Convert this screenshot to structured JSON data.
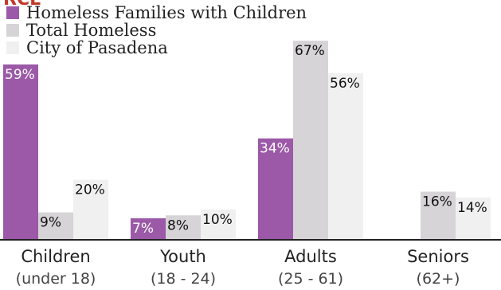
{
  "chart_data": {
    "type": "bar",
    "categories": [
      "Children",
      "Youth",
      "Adults",
      "Seniors"
    ],
    "category_sublabels": [
      "(under 18)",
      "(18 - 24)",
      "(25 - 61)",
      "(62+)"
    ],
    "series": [
      {
        "name": "Homeless Families with Children",
        "values": [
          59,
          7,
          34,
          null
        ],
        "value_labels": [
          "59%",
          "7%",
          "34%",
          ""
        ],
        "color": "#9b59a8",
        "label_color": "#ffffff"
      },
      {
        "name": "Total Homeless",
        "values": [
          9,
          8,
          67,
          16
        ],
        "value_labels": [
          "9%",
          "8%",
          "67%",
          "16%"
        ],
        "color": "#d6d4d6",
        "label_color": "#111111"
      },
      {
        "name": "City of Pasadena",
        "values": [
          20,
          10,
          56,
          14
        ],
        "value_labels": [
          "20%",
          "10%",
          "56%",
          "14%"
        ],
        "color": "#f0f0f0",
        "label_color": "#111111"
      }
    ],
    "ylim": [
      0,
      70
    ],
    "legend_position": "top-left",
    "grid": false,
    "baseline_color": "#222222",
    "header_fragment": "RCE",
    "header_fragment_color": "#c0392b"
  }
}
